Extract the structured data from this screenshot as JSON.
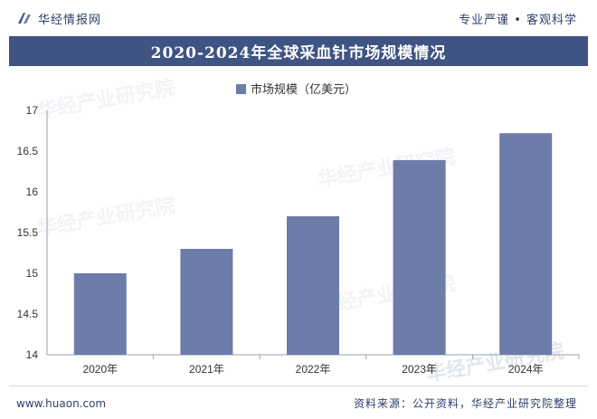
{
  "header": {
    "brand_name": "华经情报网",
    "tagline": "专业严谨 • 客观科学"
  },
  "title": "2020-2024年全球采血针市场规模情况",
  "watermark_text": "华经产业研究院",
  "footer": {
    "site": "www.huaon.com",
    "source": "资料来源：公开资料，华经产业研究院整理"
  },
  "colors": {
    "bar": "#6d7ca9",
    "title_bg": "#3f5483",
    "text": "#2f3d6b"
  },
  "chart_data": {
    "type": "bar",
    "categories": [
      "2020年",
      "2021年",
      "2022年",
      "2023年",
      "2024年"
    ],
    "series": [
      {
        "name": "市场规模（亿美元）",
        "values": [
          15.0,
          15.3,
          15.7,
          16.39,
          16.72
        ]
      }
    ],
    "ylim": [
      14,
      17
    ],
    "yticks": [
      "14",
      "14.5",
      "15",
      "15.5",
      "16",
      "16.5",
      "17"
    ],
    "legend_position": "top",
    "grid": false
  }
}
